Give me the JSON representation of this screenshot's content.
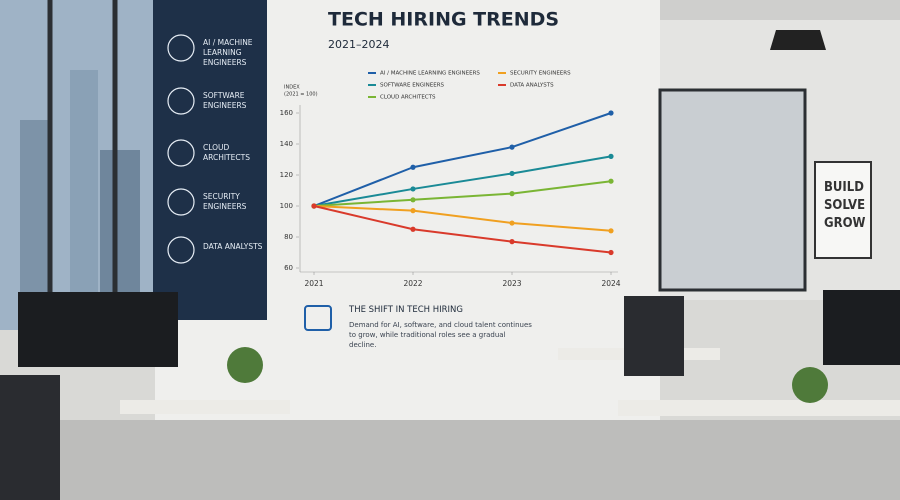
{
  "chart_data": {
    "type": "line",
    "title": "TECH HIRING TRENDS",
    "subtitle": "2021–2024",
    "y_label": [
      "INDEX",
      "(2021 = 100)"
    ],
    "x": [
      2021,
      2022,
      2023,
      2024
    ],
    "xlim": [
      2021,
      2024
    ],
    "xticks": [
      2021,
      2022,
      2023,
      2024
    ],
    "ylim": [
      60,
      160
    ],
    "yticks": [
      60,
      80,
      100,
      120,
      140,
      160
    ],
    "grid": false,
    "legend": "top",
    "series": [
      {
        "name": "AI / MACHINE LEARNING ENGINEERS",
        "color": "#1f5fa8",
        "values": [
          100,
          125,
          138,
          160
        ]
      },
      {
        "name": "SOFTWARE ENGINEERS",
        "color": "#1a8a96",
        "values": [
          100,
          111,
          121,
          132
        ]
      },
      {
        "name": "CLOUD ARCHITECTS",
        "color": "#7ab534",
        "values": [
          100,
          104,
          108,
          116
        ]
      },
      {
        "name": "SECURITY ENGINEERS",
        "color": "#f0a020",
        "values": [
          100,
          97,
          89,
          84
        ]
      },
      {
        "name": "DATA ANALYSTS",
        "color": "#d93a2b",
        "values": [
          100,
          85,
          77,
          70
        ]
      }
    ]
  },
  "sidebar": [
    "AI / MACHINE LEARNING ENGINEERS",
    "SOFTWARE ENGINEERS",
    "CLOUD ARCHITECTS",
    "SECURITY ENGINEERS",
    "DATA ANALYSTS"
  ],
  "note": {
    "title": "THE SHIFT IN TECH HIRING",
    "text": "Demand for AI, software, and cloud talent continues to grow, while traditional roles see a gradual decline."
  },
  "poster": [
    "BUILD",
    "SOLVE",
    "GROW"
  ]
}
